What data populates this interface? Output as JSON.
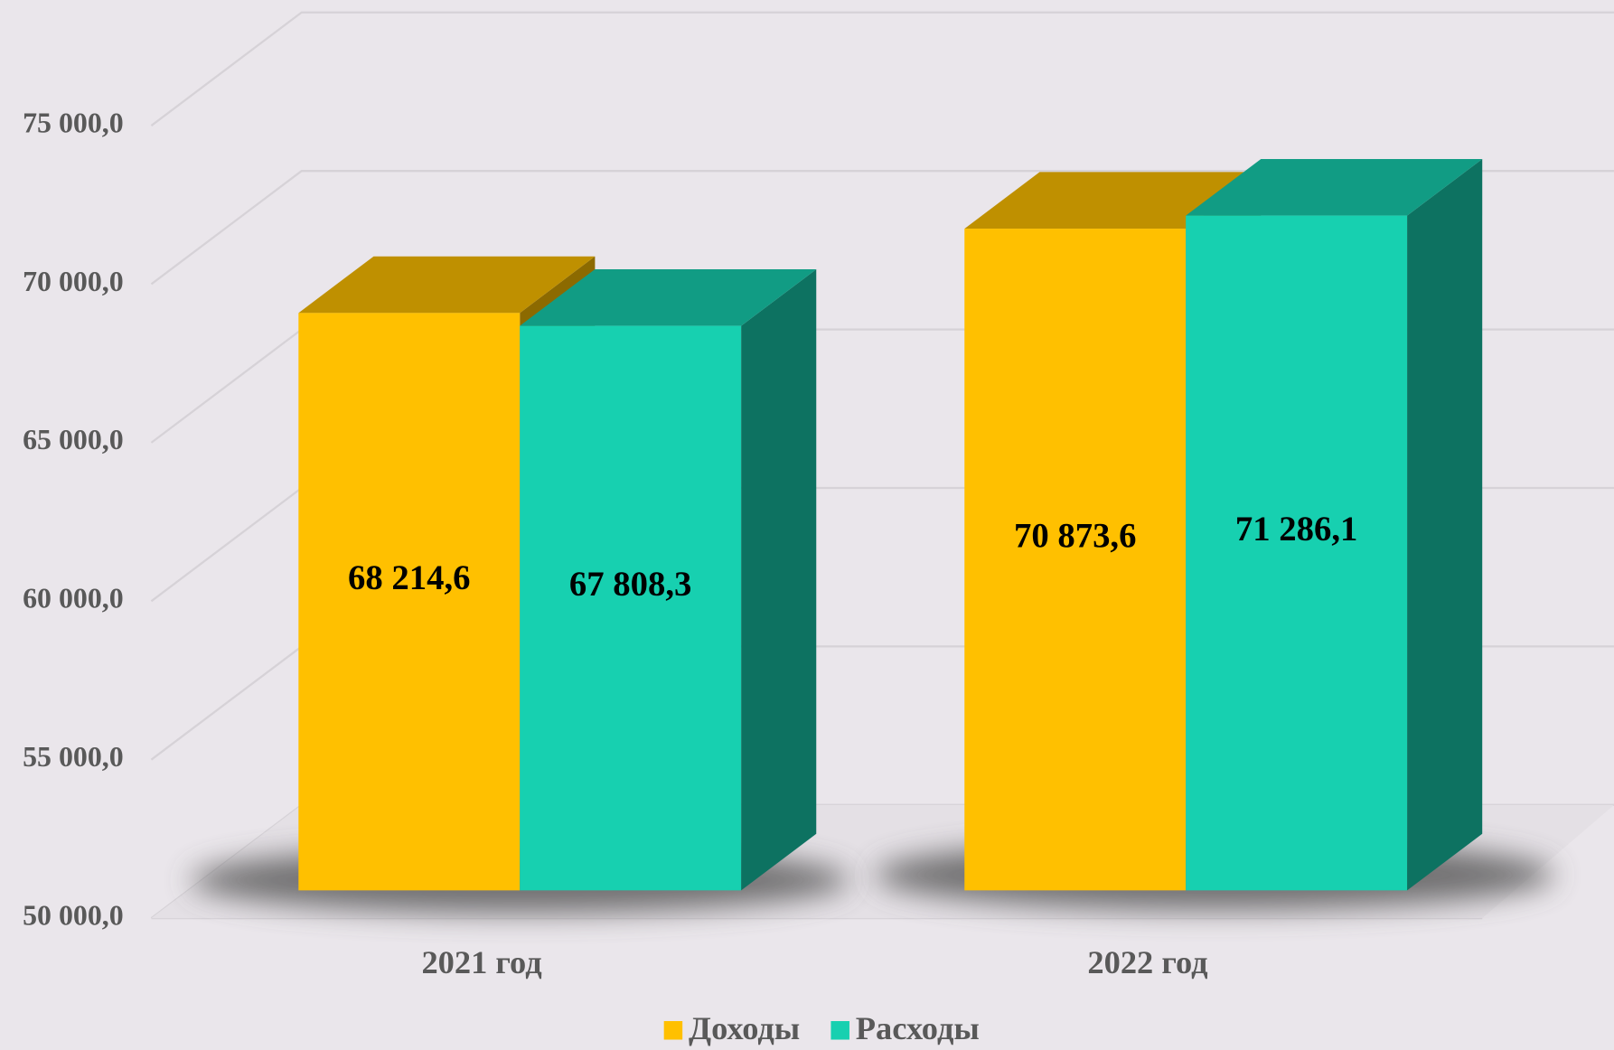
{
  "chart_data": {
    "type": "bar3d",
    "categories": [
      "2021 год",
      "2022 год"
    ],
    "series": [
      {
        "name": "Доходы",
        "color": "#FFC000",
        "values": [
          68214.6,
          70873.6
        ],
        "value_labels": [
          "68 214,6",
          "70 873,6"
        ]
      },
      {
        "name": "Расходы",
        "color": "#17D0B0",
        "values": [
          67808.3,
          71286.1
        ],
        "value_labels": [
          "67 808,3",
          "71 286,1"
        ]
      }
    ],
    "ylim": [
      50000,
      80000
    ],
    "yticks": [
      {
        "value": 50000,
        "label": "50 000,0"
      },
      {
        "value": 55000,
        "label": "55 000,0"
      },
      {
        "value": 60000,
        "label": "60 000,0"
      },
      {
        "value": 65000,
        "label": "65 000,0"
      },
      {
        "value": 70000,
        "label": "70 000,0"
      },
      {
        "value": 75000,
        "label": "75 000,0"
      }
    ],
    "grid": true,
    "legend": "bottom"
  }
}
